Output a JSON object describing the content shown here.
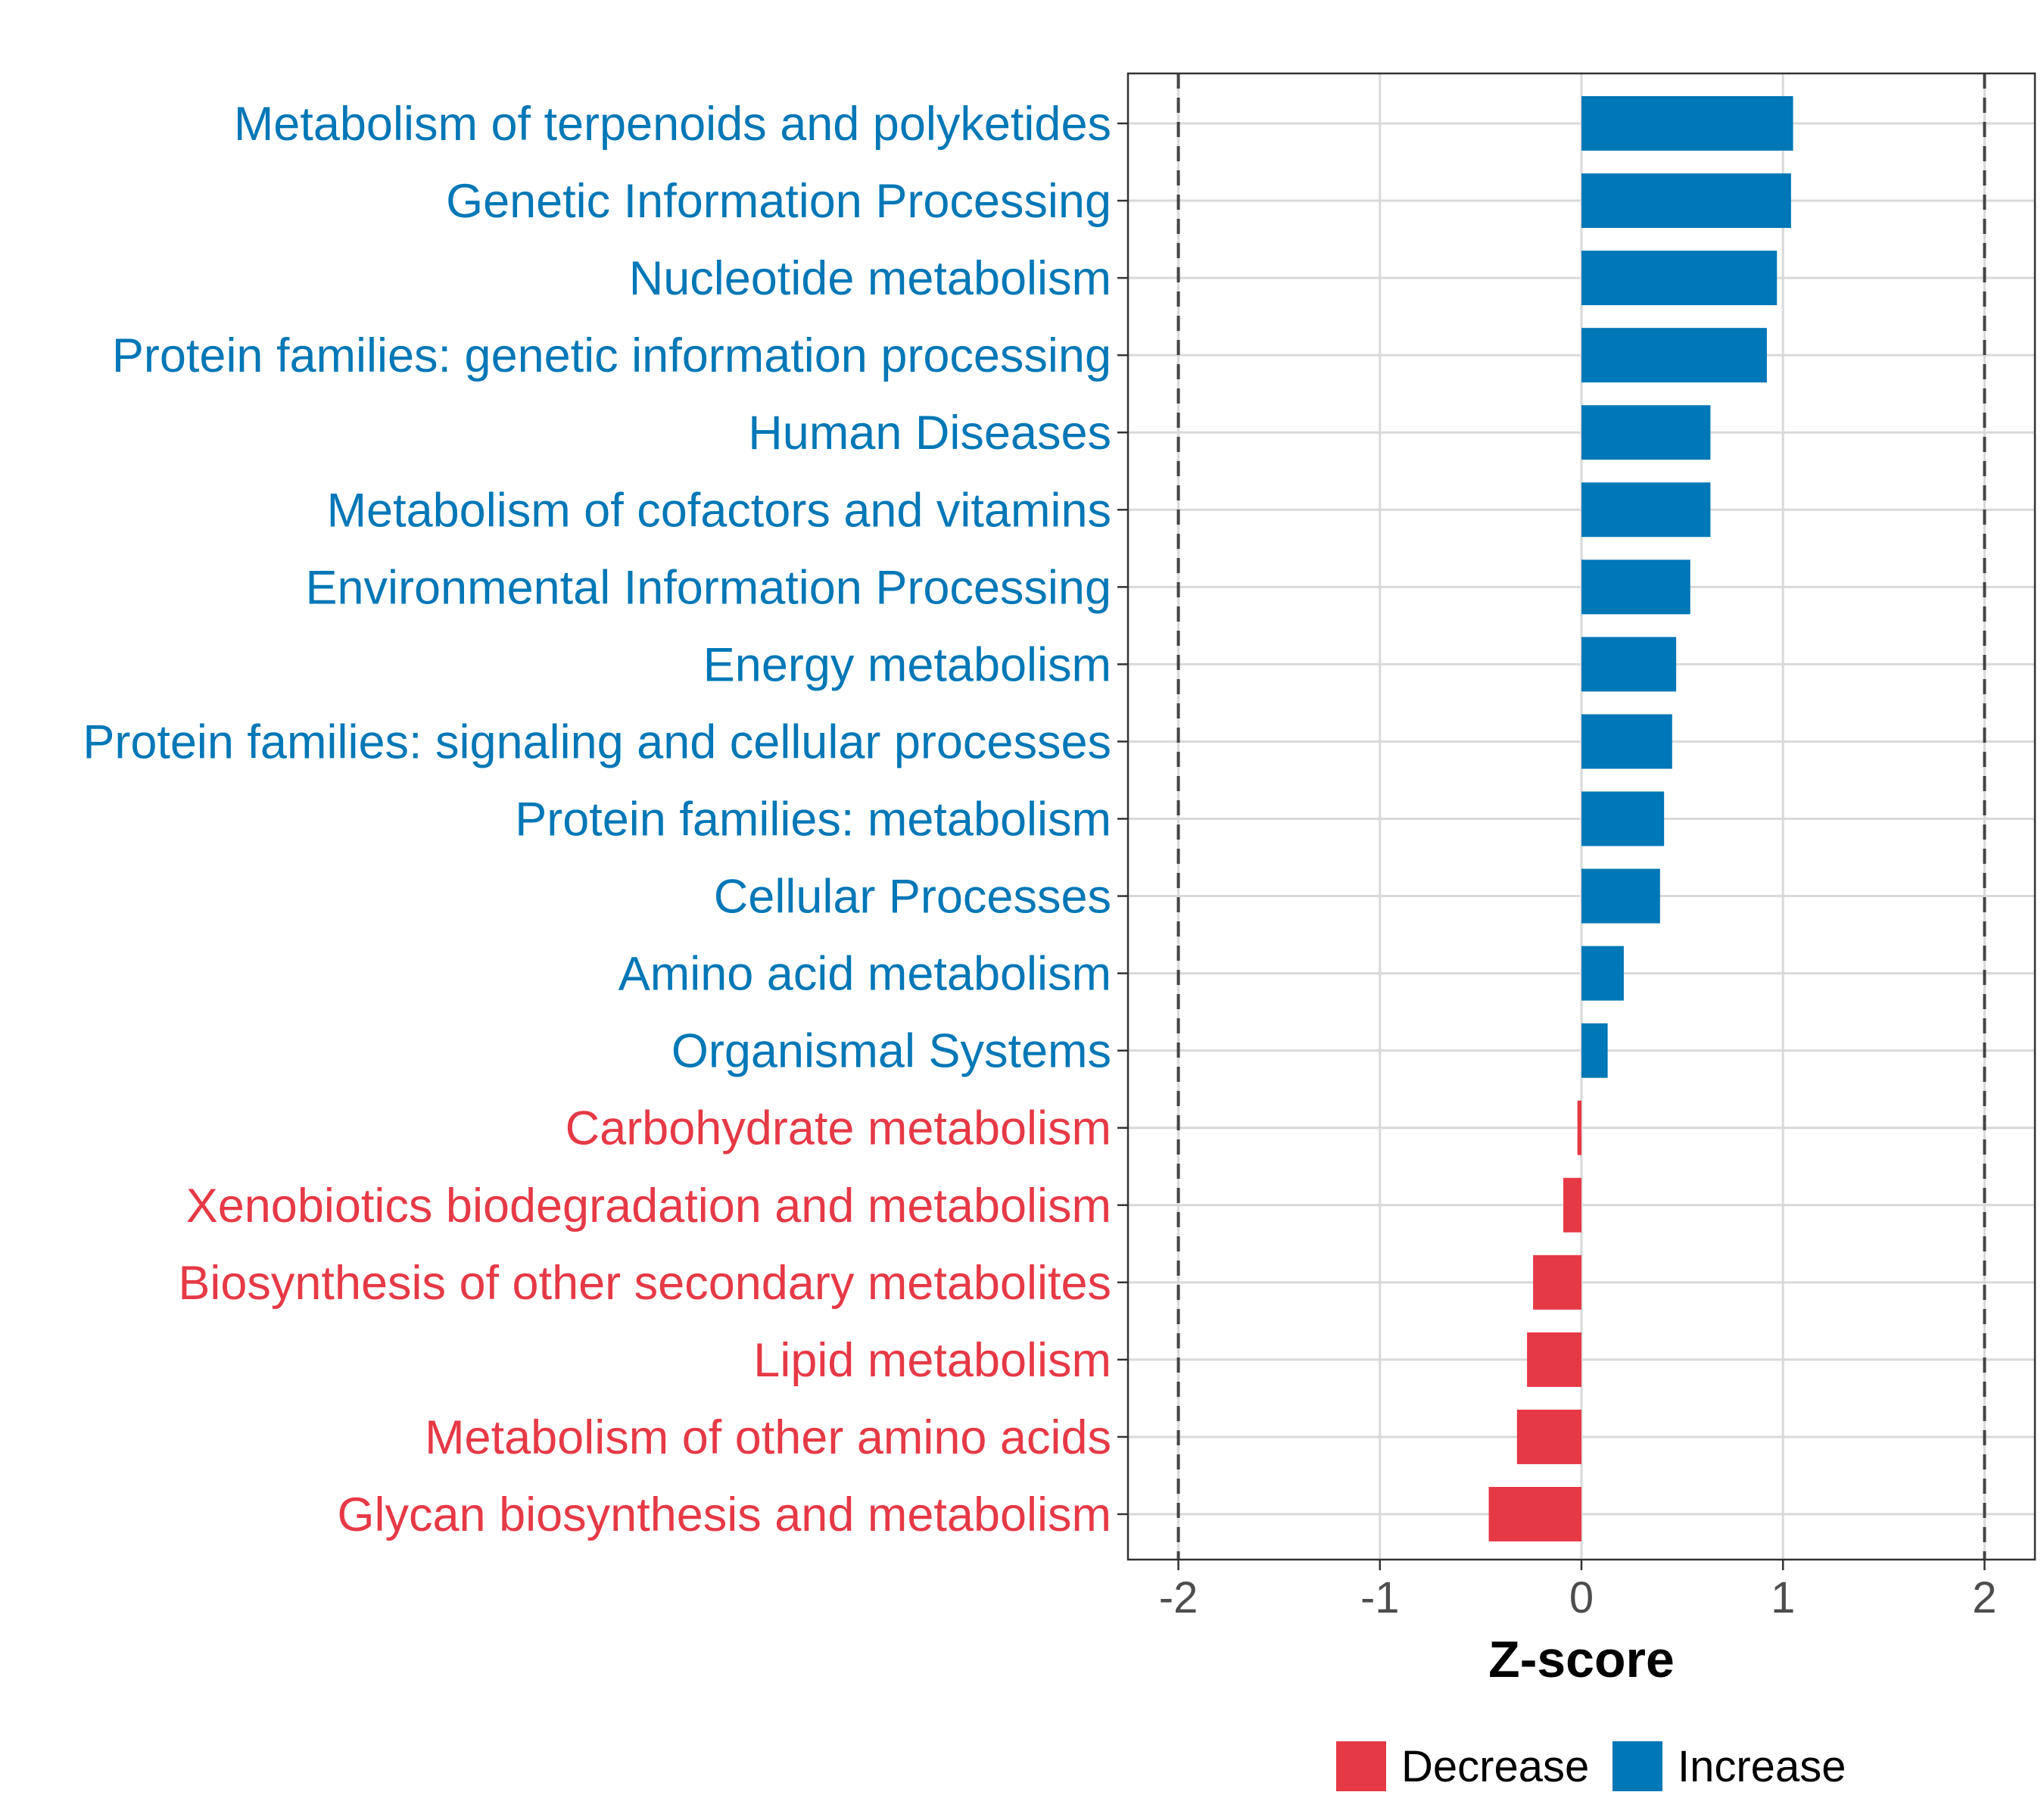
{
  "chart_data": {
    "type": "bar",
    "orientation": "horizontal",
    "title": "",
    "xlabel": "Z-score",
    "ylabel": "",
    "xlim": [
      -2.25,
      2.25
    ],
    "xticks": [
      "-2",
      "-1",
      "0",
      "1",
      "2"
    ],
    "reference_lines": [
      -2,
      2
    ],
    "categories": [
      "Metabolism of terpenoids and polyketides",
      "Genetic Information Processing",
      "Nucleotide metabolism",
      "Protein families: genetic information processing",
      "Human Diseases",
      "Metabolism of cofactors and vitamins",
      "Environmental Information Processing",
      "Energy metabolism",
      "Protein families: signaling and cellular processes",
      "Protein families: metabolism",
      "Cellular Processes",
      "Amino acid metabolism",
      "Organismal Systems",
      "Carbohydrate metabolism",
      "Xenobiotics biodegradation and metabolism",
      "Biosynthesis of other secondary metabolites",
      "Lipid metabolism",
      "Metabolism of other amino acids",
      "Glycan biosynthesis and metabolism"
    ],
    "values": [
      1.05,
      1.04,
      0.97,
      0.92,
      0.64,
      0.64,
      0.54,
      0.47,
      0.45,
      0.41,
      0.39,
      0.21,
      0.13,
      -0.02,
      -0.09,
      -0.24,
      -0.27,
      -0.32,
      -0.46
    ],
    "groups": [
      "Increase",
      "Increase",
      "Increase",
      "Increase",
      "Increase",
      "Increase",
      "Increase",
      "Increase",
      "Increase",
      "Increase",
      "Increase",
      "Increase",
      "Increase",
      "Decrease",
      "Decrease",
      "Decrease",
      "Decrease",
      "Decrease",
      "Decrease"
    ],
    "legend": {
      "position": "bottom",
      "entries": [
        {
          "name": "Decrease",
          "color": "#e63946"
        },
        {
          "name": "Increase",
          "color": "#0077b6"
        }
      ]
    },
    "colors": {
      "Increase": "#0077b6",
      "Decrease": "#e63946"
    }
  }
}
